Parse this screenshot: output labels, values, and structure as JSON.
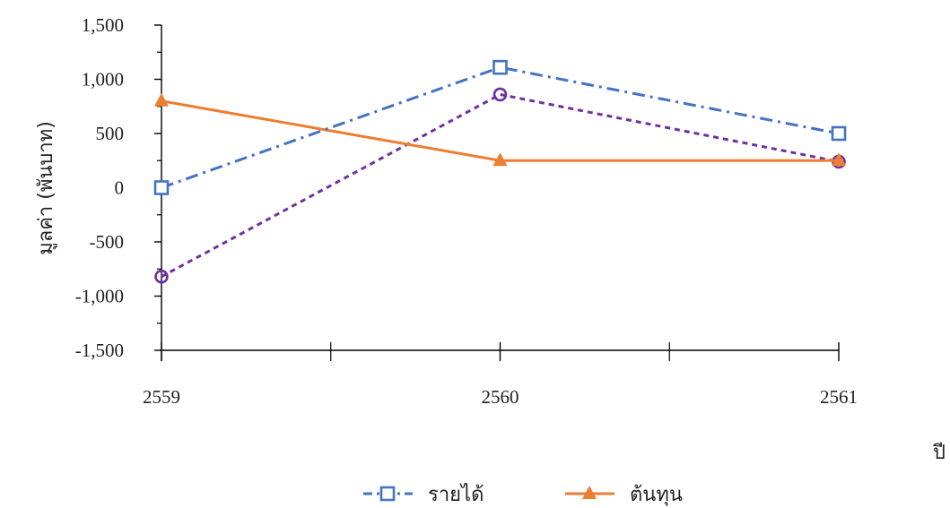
{
  "chart_data": {
    "type": "line",
    "xlabel": "ปี",
    "ylabel": "มูลค่า (พันบาท)",
    "categories": [
      "2559",
      "2560",
      "2561"
    ],
    "ylim": [
      -1500,
      1500
    ],
    "yticks": [
      1500,
      1000,
      500,
      0,
      -500,
      -1000,
      -1500
    ],
    "ytick_labels": [
      "1,500",
      "1,000",
      "500",
      "0",
      "-500",
      "-1,000",
      "-1,500"
    ],
    "grid": false,
    "legend_position": "bottom",
    "series": [
      {
        "name": "รายได้",
        "values": [
          0,
          1110,
          500
        ],
        "color": "#4472C4",
        "dash": "dash-dot",
        "marker": "open-square"
      },
      {
        "name": "ต้นทุน",
        "values": [
          800,
          250,
          250
        ],
        "color": "#ED7D31",
        "dash": "solid",
        "marker": "filled-triangle"
      },
      {
        "name": "",
        "values": [
          -820,
          860,
          240
        ],
        "color": "#7030A0",
        "dash": "dashed",
        "marker": "circle"
      }
    ]
  }
}
